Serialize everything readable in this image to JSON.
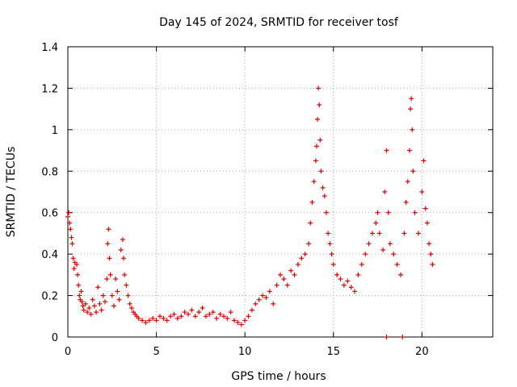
{
  "chart_data": {
    "type": "scatter",
    "title": "Day 145 of 2024, SRMTID for receiver tosf",
    "xlabel": "GPS time / hours",
    "ylabel": "SRMTID / TECUs",
    "xlim": [
      0,
      24
    ],
    "ylim": [
      0,
      1.4
    ],
    "xticks": [
      0,
      5,
      10,
      15,
      20
    ],
    "yticks": [
      0,
      0.2,
      0.4,
      0.6,
      0.8,
      1,
      1.2,
      1.4
    ],
    "ytick_labels": [
      "0",
      "0.2",
      "0.4",
      "0.6",
      "0.8",
      "1",
      "1.2",
      "1.4"
    ],
    "grid": true,
    "marker": "+",
    "color": "#e00000",
    "series": [
      {
        "name": "SRMTID",
        "points": [
          [
            0.0,
            0.58
          ],
          [
            0.05,
            0.6
          ],
          [
            0.1,
            0.55
          ],
          [
            0.15,
            0.52
          ],
          [
            0.2,
            0.48
          ],
          [
            0.25,
            0.45
          ],
          [
            0.3,
            0.38
          ],
          [
            0.35,
            0.33
          ],
          [
            0.4,
            0.36
          ],
          [
            0.5,
            0.35
          ],
          [
            0.55,
            0.3
          ],
          [
            0.6,
            0.25
          ],
          [
            0.65,
            0.2
          ],
          [
            0.7,
            0.18
          ],
          [
            0.75,
            0.22
          ],
          [
            0.8,
            0.17
          ],
          [
            0.85,
            0.15
          ],
          [
            0.9,
            0.13
          ],
          [
            1.0,
            0.16
          ],
          [
            1.1,
            0.12
          ],
          [
            1.2,
            0.14
          ],
          [
            1.3,
            0.11
          ],
          [
            1.4,
            0.18
          ],
          [
            1.5,
            0.15
          ],
          [
            1.6,
            0.12
          ],
          [
            1.7,
            0.24
          ],
          [
            1.8,
            0.16
          ],
          [
            1.9,
            0.13
          ],
          [
            2.0,
            0.2
          ],
          [
            2.1,
            0.17
          ],
          [
            2.2,
            0.28
          ],
          [
            2.25,
            0.45
          ],
          [
            2.3,
            0.52
          ],
          [
            2.35,
            0.38
          ],
          [
            2.4,
            0.3
          ],
          [
            2.5,
            0.2
          ],
          [
            2.6,
            0.15
          ],
          [
            2.7,
            0.28
          ],
          [
            2.8,
            0.22
          ],
          [
            2.9,
            0.18
          ],
          [
            3.0,
            0.42
          ],
          [
            3.1,
            0.47
          ],
          [
            3.15,
            0.38
          ],
          [
            3.2,
            0.3
          ],
          [
            3.3,
            0.25
          ],
          [
            3.4,
            0.2
          ],
          [
            3.5,
            0.16
          ],
          [
            3.6,
            0.14
          ],
          [
            3.7,
            0.12
          ],
          [
            3.8,
            0.11
          ],
          [
            3.9,
            0.1
          ],
          [
            4.0,
            0.09
          ],
          [
            4.2,
            0.08
          ],
          [
            4.4,
            0.07
          ],
          [
            4.6,
            0.08
          ],
          [
            4.8,
            0.09
          ],
          [
            5.0,
            0.08
          ],
          [
            5.2,
            0.1
          ],
          [
            5.4,
            0.09
          ],
          [
            5.6,
            0.08
          ],
          [
            5.8,
            0.1
          ],
          [
            6.0,
            0.11
          ],
          [
            6.2,
            0.09
          ],
          [
            6.4,
            0.1
          ],
          [
            6.6,
            0.12
          ],
          [
            6.8,
            0.11
          ],
          [
            7.0,
            0.13
          ],
          [
            7.2,
            0.1
          ],
          [
            7.4,
            0.12
          ],
          [
            7.6,
            0.14
          ],
          [
            7.8,
            0.1
          ],
          [
            8.0,
            0.11
          ],
          [
            8.2,
            0.12
          ],
          [
            8.4,
            0.09
          ],
          [
            8.6,
            0.11
          ],
          [
            8.8,
            0.1
          ],
          [
            9.0,
            0.09
          ],
          [
            9.2,
            0.12
          ],
          [
            9.4,
            0.08
          ],
          [
            9.6,
            0.07
          ],
          [
            9.8,
            0.06
          ],
          [
            10.0,
            0.08
          ],
          [
            10.2,
            0.1
          ],
          [
            10.4,
            0.13
          ],
          [
            10.6,
            0.16
          ],
          [
            10.8,
            0.18
          ],
          [
            11.0,
            0.2
          ],
          [
            11.2,
            0.19
          ],
          [
            11.4,
            0.22
          ],
          [
            11.6,
            0.16
          ],
          [
            11.8,
            0.25
          ],
          [
            12.0,
            0.3
          ],
          [
            12.2,
            0.28
          ],
          [
            12.4,
            0.25
          ],
          [
            12.6,
            0.32
          ],
          [
            12.8,
            0.3
          ],
          [
            13.0,
            0.35
          ],
          [
            13.2,
            0.38
          ],
          [
            13.4,
            0.4
          ],
          [
            13.6,
            0.45
          ],
          [
            13.7,
            0.55
          ],
          [
            13.8,
            0.65
          ],
          [
            13.9,
            0.75
          ],
          [
            14.0,
            0.85
          ],
          [
            14.05,
            0.92
          ],
          [
            14.1,
            1.05
          ],
          [
            14.15,
            1.2
          ],
          [
            14.2,
            1.12
          ],
          [
            14.25,
            0.95
          ],
          [
            14.3,
            0.8
          ],
          [
            14.4,
            0.72
          ],
          [
            14.5,
            0.68
          ],
          [
            14.6,
            0.6
          ],
          [
            14.7,
            0.5
          ],
          [
            14.8,
            0.45
          ],
          [
            14.9,
            0.4
          ],
          [
            15.0,
            0.35
          ],
          [
            15.2,
            0.3
          ],
          [
            15.4,
            0.28
          ],
          [
            15.6,
            0.25
          ],
          [
            15.8,
            0.27
          ],
          [
            16.0,
            0.24
          ],
          [
            16.2,
            0.22
          ],
          [
            16.4,
            0.3
          ],
          [
            16.6,
            0.35
          ],
          [
            16.8,
            0.4
          ],
          [
            17.0,
            0.45
          ],
          [
            17.2,
            0.5
          ],
          [
            17.4,
            0.55
          ],
          [
            17.5,
            0.6
          ],
          [
            17.6,
            0.5
          ],
          [
            17.8,
            0.42
          ],
          [
            17.9,
            0.7
          ],
          [
            18.0,
            0.9
          ],
          [
            18.1,
            0.6
          ],
          [
            18.2,
            0.45
          ],
          [
            18.4,
            0.4
          ],
          [
            18.6,
            0.35
          ],
          [
            18.8,
            0.3
          ],
          [
            19.0,
            0.5
          ],
          [
            19.1,
            0.65
          ],
          [
            19.2,
            0.75
          ],
          [
            19.3,
            0.9
          ],
          [
            19.35,
            1.1
          ],
          [
            19.4,
            1.15
          ],
          [
            19.45,
            1.0
          ],
          [
            19.5,
            0.8
          ],
          [
            19.6,
            0.6
          ],
          [
            19.8,
            0.5
          ],
          [
            20.0,
            0.7
          ],
          [
            20.1,
            0.85
          ],
          [
            20.2,
            0.62
          ],
          [
            20.3,
            0.55
          ],
          [
            20.4,
            0.45
          ],
          [
            20.5,
            0.4
          ],
          [
            20.6,
            0.35
          ],
          [
            18.0,
            0.0
          ],
          [
            18.9,
            0.0
          ]
        ]
      }
    ]
  }
}
